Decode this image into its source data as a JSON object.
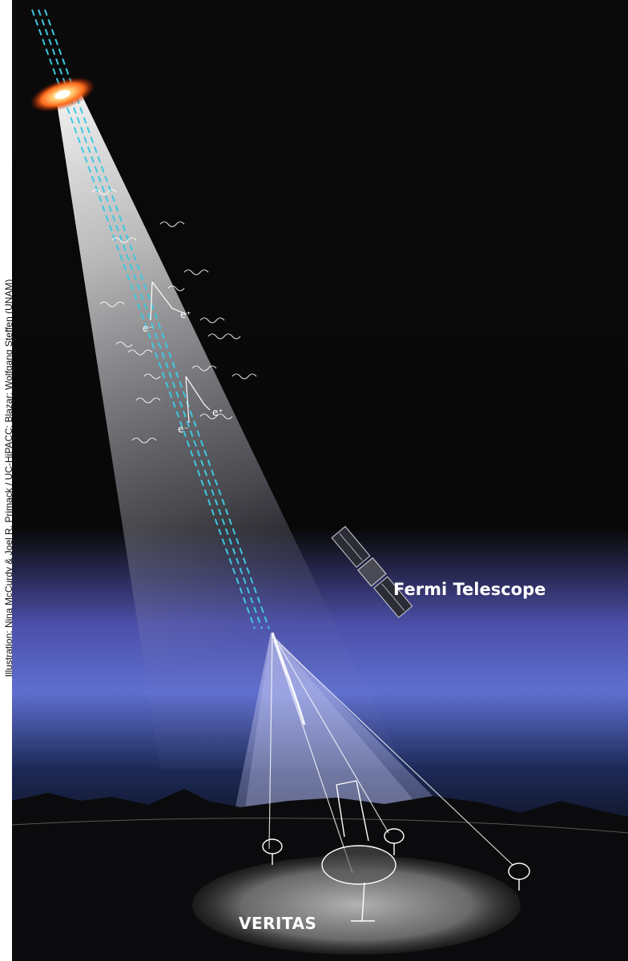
{
  "credit": "Illustration: Nina McCurdy & Joel R. Primack / UC-HiPACC; Blazar: Wolfgang Steffen (UNAM)",
  "labels": {
    "fermi": "Fermi Telescope",
    "veritas": "VERITAS"
  },
  "particle_labels": [
    "e⁺",
    "e⁻",
    "e⁺",
    "e⁻"
  ],
  "colors": {
    "sky": "#050505",
    "horizon_glow": "#5f6fd0",
    "beam": "#ffffff",
    "gamma_path": "#3fc7e0",
    "jet": "#ff6a1a",
    "label_text": "#ffffff"
  },
  "icons": [
    "blazar-icon",
    "satellite-icon",
    "cherenkov-telescope-icon"
  ]
}
